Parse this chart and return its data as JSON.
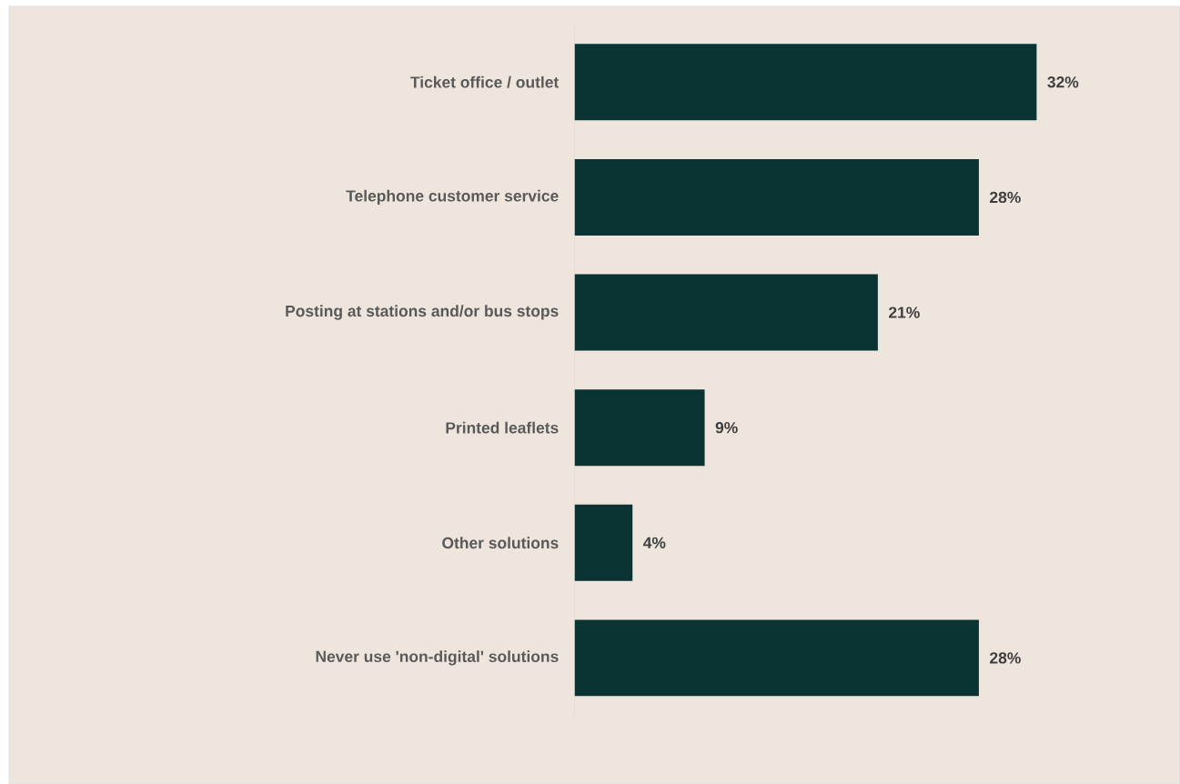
{
  "chart_data": {
    "type": "bar",
    "orientation": "horizontal",
    "categories": [
      "Ticket office / outlet",
      "Telephone customer service",
      "Posting at stations and/or bus stops",
      "Printed leaflets",
      "Other solutions",
      "Never use 'non-digital' solutions"
    ],
    "values": [
      32,
      28,
      21,
      9,
      4,
      28
    ],
    "value_labels": [
      "32%",
      "28%",
      "21%",
      "9%",
      "4%",
      "28%"
    ],
    "color": "#0b3333"
  }
}
